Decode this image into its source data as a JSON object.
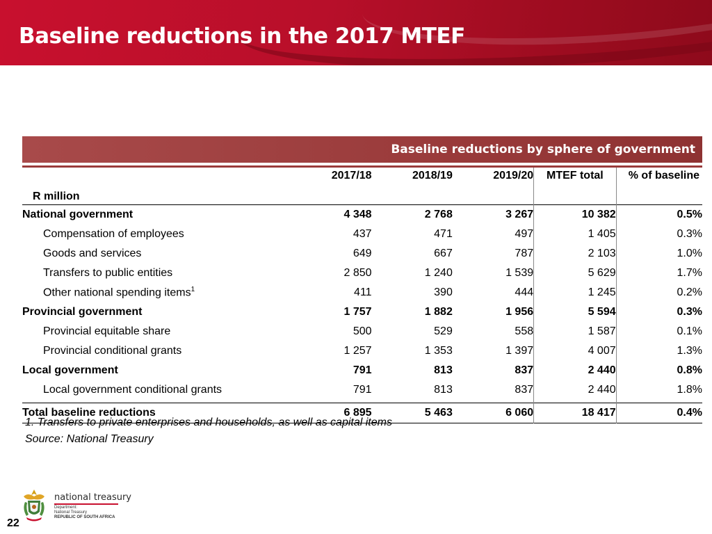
{
  "slide": {
    "title": "Baseline reductions in the 2017 MTEF",
    "page_number": "22"
  },
  "table": {
    "caption": "Baseline reductions by sphere of government",
    "unit_label": "R million",
    "columns": [
      "2017/18",
      "2018/19",
      "2019/20",
      "MTEF total",
      "% of baseline"
    ],
    "rows": [
      {
        "label": "National government",
        "values": [
          "4 348",
          "2 768",
          "3 267",
          "10 382",
          "0.5%"
        ]
      },
      {
        "label": "Compensation of employees",
        "values": [
          "437",
          "471",
          "497",
          "1 405",
          "0.3%"
        ]
      },
      {
        "label": "Goods and services",
        "values": [
          "649",
          "667",
          "787",
          "2 103",
          "1.0%"
        ]
      },
      {
        "label": "Transfers to public entities",
        "values": [
          "2 850",
          "1 240",
          "1 539",
          "5 629",
          "1.7%"
        ]
      },
      {
        "label": "Other national spending items",
        "footnote_ref": "1",
        "values": [
          "411",
          "390",
          "444",
          "1 245",
          "0.2%"
        ]
      },
      {
        "label": "Provincial government",
        "values": [
          "1 757",
          "1 882",
          "1 956",
          "5 594",
          "0.3%"
        ]
      },
      {
        "label": "Provincial equitable share",
        "values": [
          "500",
          "529",
          "558",
          "1 587",
          "0.1%"
        ]
      },
      {
        "label": "Provincial conditional grants",
        "values": [
          "1 257",
          "1 353",
          "1 397",
          "4 007",
          "1.3%"
        ]
      },
      {
        "label": "Local government",
        "values": [
          "791",
          "813",
          "837",
          "2 440",
          "0.8%"
        ]
      },
      {
        "label": "Local government conditional grants",
        "values": [
          "791",
          "813",
          "837",
          "2 440",
          "1.8%"
        ]
      },
      {
        "label": "Total baseline reductions",
        "values": [
          "6 895",
          "5 463",
          "6 060",
          "18 417",
          "0.4%"
        ]
      }
    ],
    "footnote": "1. Transfers to private enterprises and households, as well as capital items",
    "source": "Source: National Treasury"
  },
  "logo": {
    "wordmark": "national treasury",
    "line1": "Department:",
    "line2": "National Treasury",
    "line3": "REPUBLIC OF SOUTH AFRICA",
    "icon": "coat-of-arms-icon"
  },
  "colors": {
    "banner": "#c8102e",
    "table_header": "#9a3b3b"
  }
}
